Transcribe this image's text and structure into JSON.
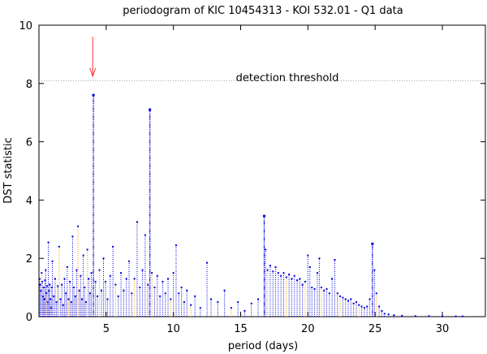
{
  "chart_data": {
    "type": "scatter",
    "title": "periodogram of KIC 10454313 - KOI 532.01 - Q1 data",
    "xlabel": "period (days)",
    "ylabel": "DST statistic",
    "xlim": [
      0,
      33.2
    ],
    "ylim": [
      0,
      10
    ],
    "x_ticks": [
      5,
      10,
      15,
      20,
      25,
      30
    ],
    "y_ticks": [
      0,
      2,
      4,
      6,
      8,
      10
    ],
    "grid": false,
    "legend": "none",
    "colors": {
      "points": "#0000dd",
      "stems": "#0000dd",
      "alt_stems": "#ff9a00",
      "threshold": "#9a9a9a",
      "arrow": "#ff3333",
      "axes": "#000000"
    },
    "threshold": {
      "y": 8.1,
      "label": "detection threshold"
    },
    "arrow": {
      "x": 4.0,
      "y_top": 9.6,
      "y_tip": 8.25
    },
    "peaks": [
      {
        "x": 4.05,
        "y": 7.6
      },
      {
        "x": 8.25,
        "y": 7.1
      },
      {
        "x": 16.75,
        "y": 3.45
      },
      {
        "x": 24.8,
        "y": 2.5
      }
    ],
    "series": [
      {
        "values": [
          [
            0.05,
            1.3
          ],
          [
            0.1,
            1.1
          ],
          [
            0.15,
            0.9
          ],
          [
            0.2,
            1.5
          ],
          [
            0.25,
            1.2
          ],
          [
            0.3,
            0.7
          ],
          [
            0.35,
            1.0
          ],
          [
            0.4,
            0.6
          ],
          [
            0.45,
            1.25
          ],
          [
            0.5,
            1.6
          ],
          [
            0.55,
            0.8
          ],
          [
            0.6,
            1.05
          ],
          [
            0.65,
            0.5
          ],
          [
            0.7,
            2.55
          ],
          [
            0.75,
            0.9
          ],
          [
            0.8,
            1.1
          ],
          [
            0.85,
            0.6
          ],
          [
            0.9,
            0.3
          ],
          [
            0.95,
            1.0
          ],
          [
            1.0,
            1.9
          ],
          [
            1.1,
            0.7
          ],
          [
            1.2,
            1.3
          ],
          [
            1.3,
            0.5
          ],
          [
            1.4,
            1.05
          ],
          [
            1.5,
            2.4
          ],
          [
            1.6,
            0.6
          ],
          [
            1.7,
            1.1
          ],
          [
            1.8,
            0.4
          ],
          [
            1.9,
            1.3
          ],
          [
            2.0,
            0.8
          ],
          [
            2.1,
            1.7
          ],
          [
            2.2,
            0.6
          ],
          [
            2.3,
            1.2
          ],
          [
            2.4,
            0.5
          ],
          [
            2.5,
            2.75
          ],
          [
            2.6,
            1.0
          ],
          [
            2.7,
            0.7
          ],
          [
            2.8,
            1.6
          ],
          [
            2.9,
            3.1
          ],
          [
            3.0,
            0.9
          ],
          [
            3.1,
            1.4
          ],
          [
            3.2,
            0.6
          ],
          [
            3.3,
            2.1
          ],
          [
            3.4,
            1.0
          ],
          [
            3.5,
            0.5
          ],
          [
            3.6,
            2.3
          ],
          [
            3.7,
            1.3
          ],
          [
            3.8,
            0.8
          ],
          [
            3.9,
            1.5
          ],
          [
            4.05,
            7.6
          ],
          [
            4.2,
            1.2
          ],
          [
            4.35,
            0.7
          ],
          [
            4.5,
            1.6
          ],
          [
            4.65,
            0.9
          ],
          [
            4.8,
            2.0
          ],
          [
            4.95,
            1.2
          ],
          [
            5.1,
            0.6
          ],
          [
            5.3,
            1.4
          ],
          [
            5.5,
            2.4
          ],
          [
            5.7,
            1.1
          ],
          [
            5.9,
            0.7
          ],
          [
            6.1,
            1.5
          ],
          [
            6.3,
            0.9
          ],
          [
            6.5,
            1.3
          ],
          [
            6.7,
            1.9
          ],
          [
            6.9,
            0.8
          ],
          [
            7.1,
            1.3
          ],
          [
            7.3,
            3.25
          ],
          [
            7.5,
            1.0
          ],
          [
            7.7,
            1.6
          ],
          [
            7.9,
            2.8
          ],
          [
            8.1,
            1.1
          ],
          [
            8.25,
            7.1
          ],
          [
            8.4,
            1.5
          ],
          [
            8.6,
            1.0
          ],
          [
            8.8,
            1.4
          ],
          [
            9.0,
            0.7
          ],
          [
            9.2,
            1.2
          ],
          [
            9.4,
            0.8
          ],
          [
            9.6,
            1.3
          ],
          [
            9.8,
            0.6
          ],
          [
            10.0,
            1.5
          ],
          [
            10.2,
            2.45
          ],
          [
            10.4,
            0.8
          ],
          [
            10.6,
            1.0
          ],
          [
            10.8,
            0.5
          ],
          [
            11.0,
            0.9
          ],
          [
            11.3,
            0.4
          ],
          [
            11.6,
            0.7
          ],
          [
            12.0,
            0.3
          ],
          [
            12.5,
            1.85
          ],
          [
            12.8,
            0.6
          ],
          [
            13.3,
            0.5
          ],
          [
            13.8,
            0.9
          ],
          [
            14.3,
            0.3
          ],
          [
            14.8,
            0.5
          ],
          [
            15.3,
            0.2
          ],
          [
            15.8,
            0.45
          ],
          [
            16.3,
            0.6
          ],
          [
            16.75,
            3.45
          ],
          [
            16.85,
            2.3
          ],
          [
            17.0,
            1.6
          ],
          [
            17.2,
            1.75
          ],
          [
            17.4,
            1.55
          ],
          [
            17.6,
            1.7
          ],
          [
            17.8,
            1.5
          ],
          [
            18.0,
            1.4
          ],
          [
            18.2,
            1.5
          ],
          [
            18.4,
            1.35
          ],
          [
            18.6,
            1.45
          ],
          [
            18.8,
            1.3
          ],
          [
            19.0,
            1.4
          ],
          [
            19.2,
            1.25
          ],
          [
            19.4,
            1.3
          ],
          [
            19.6,
            1.1
          ],
          [
            19.8,
            1.2
          ],
          [
            20.0,
            2.1
          ],
          [
            20.15,
            1.7
          ],
          [
            20.3,
            1.0
          ],
          [
            20.5,
            0.95
          ],
          [
            20.7,
            1.5
          ],
          [
            20.85,
            2.0
          ],
          [
            21.0,
            1.0
          ],
          [
            21.2,
            0.9
          ],
          [
            21.4,
            0.95
          ],
          [
            21.6,
            0.8
          ],
          [
            21.8,
            1.3
          ],
          [
            22.0,
            1.95
          ],
          [
            22.2,
            0.8
          ],
          [
            22.4,
            0.7
          ],
          [
            22.6,
            0.65
          ],
          [
            22.8,
            0.6
          ],
          [
            23.0,
            0.55
          ],
          [
            23.2,
            0.6
          ],
          [
            23.4,
            0.45
          ],
          [
            23.6,
            0.5
          ],
          [
            23.8,
            0.4
          ],
          [
            24.0,
            0.35
          ],
          [
            24.2,
            0.3
          ],
          [
            24.4,
            0.35
          ],
          [
            24.6,
            0.6
          ],
          [
            24.8,
            2.5
          ],
          [
            24.95,
            1.6
          ],
          [
            25.1,
            0.8
          ],
          [
            25.3,
            0.35
          ],
          [
            25.5,
            0.2
          ],
          [
            25.7,
            0.1
          ],
          [
            26.0,
            0.08
          ],
          [
            26.4,
            0.05
          ],
          [
            27.0,
            0.03
          ],
          [
            28.0,
            0.02
          ],
          [
            29.0,
            0.02
          ],
          [
            30.0,
            0.01
          ],
          [
            31.0,
            0.01
          ],
          [
            31.5,
            0.01
          ]
        ]
      }
    ]
  }
}
